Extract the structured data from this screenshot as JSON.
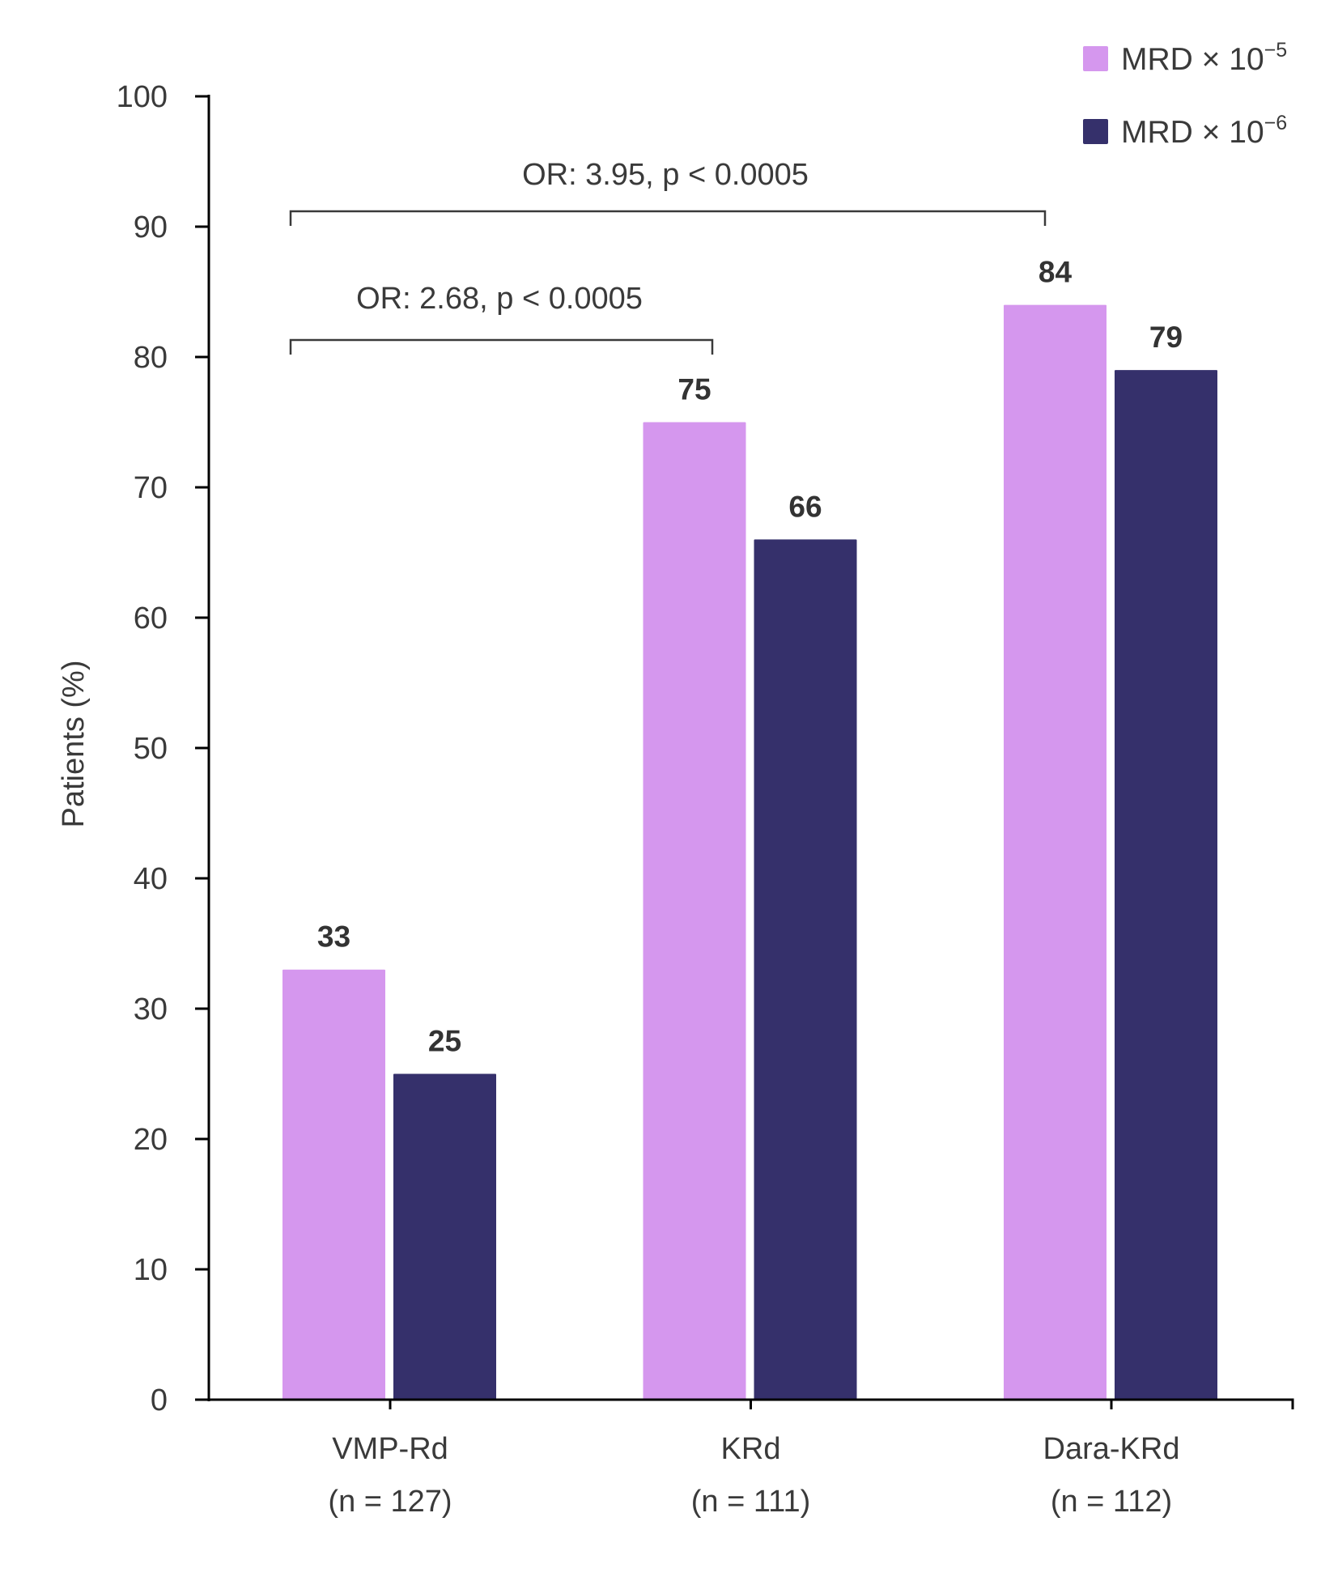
{
  "chart_data": {
    "type": "bar",
    "title": "",
    "xlabel": "",
    "ylabel": "Patients (%)",
    "ylim": [
      0,
      100
    ],
    "yticks": [
      0,
      10,
      20,
      30,
      40,
      50,
      60,
      70,
      80,
      90,
      100
    ],
    "categories": [
      {
        "name": "VMP-Rd",
        "n_label": "(n = 127)"
      },
      {
        "name": "KRd",
        "n_label": "(n = 111)"
      },
      {
        "name": "Dara-KRd",
        "n_label": "(n = 112)"
      }
    ],
    "series": [
      {
        "name": "MRD × 10",
        "sup": "−5",
        "color": "#d597ee",
        "values": [
          33,
          75,
          84
        ]
      },
      {
        "name": "MRD × 10",
        "sup": "−6",
        "color": "#35306b",
        "values": [
          25,
          66,
          79
        ]
      }
    ],
    "legend_position": "top-right",
    "grid": false,
    "annotations": [
      {
        "text": "OR: 3.95, p < 0.0005",
        "from_category": 0,
        "to_category": 2,
        "level": 93
      },
      {
        "text": "OR: 2.68, p < 0.0005",
        "from_category": 0,
        "to_category": 1,
        "level": 80.5
      }
    ],
    "colors": {
      "text": "#3a3a3a",
      "axis": "#000000",
      "bracket": "#3a3a3a"
    }
  }
}
